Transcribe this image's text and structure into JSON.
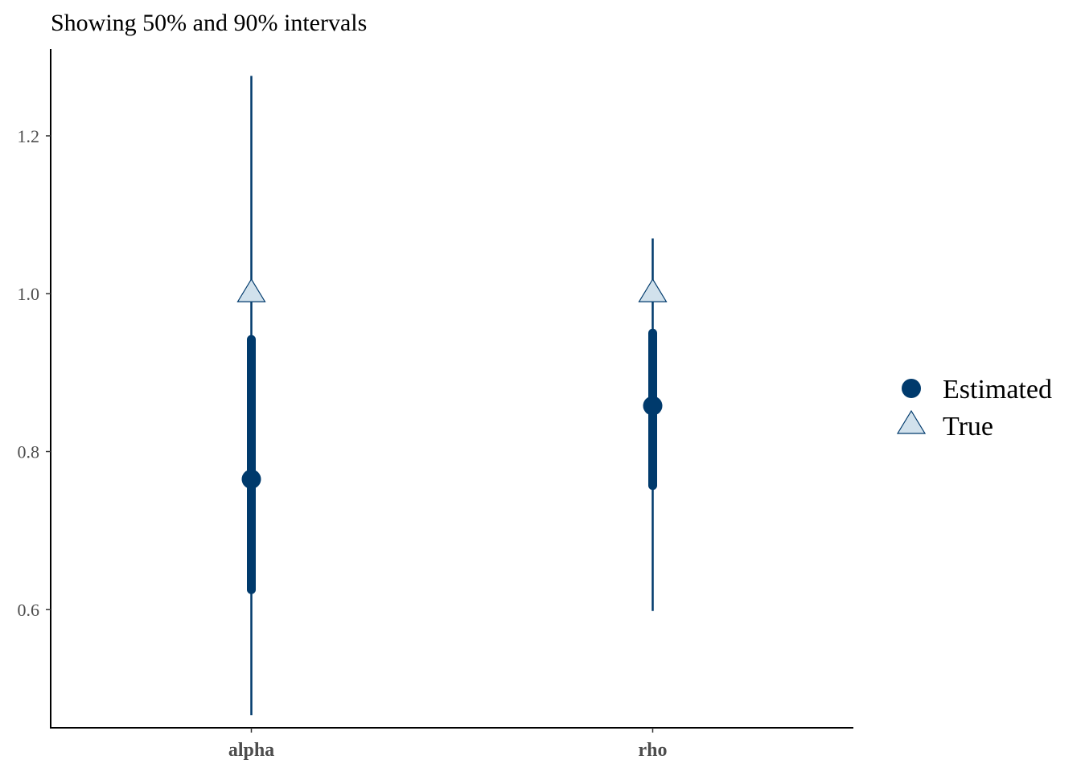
{
  "chart_data": {
    "type": "interval",
    "subtitle": "Showing 50% and 90% intervals",
    "categories": [
      "alpha",
      "rho"
    ],
    "ylim": [
      0.45,
      1.31
    ],
    "yticks": [
      0.6,
      0.8,
      1.0,
      1.2
    ],
    "ytick_labels": [
      "0.6",
      "0.8",
      "1.0",
      "1.2"
    ],
    "grid": false,
    "legend_position": "right",
    "series": [
      {
        "name": "Estimated",
        "marker": "circle",
        "color": "#003a6c",
        "values": [
          0.765,
          0.858
        ],
        "inner_interval_50": [
          [
            0.625,
            0.942
          ],
          [
            0.757,
            0.95
          ]
        ],
        "outer_interval_90": [
          [
            0.466,
            1.276
          ],
          [
            0.598,
            1.07
          ]
        ]
      },
      {
        "name": "True",
        "marker": "triangle",
        "color": "#d1e1ec",
        "edge_color": "#003a6c",
        "values": [
          1.0,
          1.0
        ]
      }
    ]
  }
}
